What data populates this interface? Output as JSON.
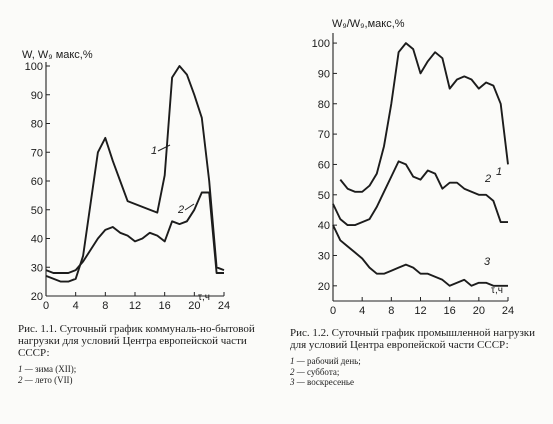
{
  "chart_data": [
    {
      "type": "line",
      "title": "",
      "ylabel": "W, W₉ макс,%",
      "xlabel": "τ,ч",
      "x_ticks": [
        0,
        4,
        8,
        12,
        16,
        20,
        24
      ],
      "y_ticks": [
        20,
        30,
        40,
        50,
        60,
        70,
        80,
        90,
        100
      ],
      "y_tick_labels": [
        "20",
        "30",
        "40",
        "50",
        "60",
        "70",
        "80",
        "90",
        "100"
      ],
      "xlim": [
        0,
        24
      ],
      "ylim": [
        20,
        100
      ],
      "grid": false,
      "series": [
        {
          "name": "1",
          "x": [
            0,
            1,
            2,
            3,
            4,
            5,
            6,
            7,
            8,
            9,
            10,
            11,
            12,
            13,
            14,
            15,
            16,
            17,
            18,
            19,
            20,
            21,
            22,
            23,
            24
          ],
          "y": [
            27,
            26,
            25,
            25,
            26,
            34,
            52,
            70,
            75,
            67,
            60,
            53,
            52,
            51,
            50,
            49,
            62,
            96,
            100,
            97,
            90,
            82,
            60,
            30,
            29
          ]
        },
        {
          "name": "2",
          "x": [
            0,
            1,
            2,
            3,
            4,
            5,
            6,
            7,
            8,
            9,
            10,
            11,
            12,
            13,
            14,
            15,
            16,
            17,
            18,
            19,
            20,
            21,
            22,
            23,
            24
          ],
          "y": [
            29,
            28,
            28,
            28,
            29,
            32,
            36,
            40,
            43,
            44,
            42,
            41,
            39,
            40,
            42,
            41,
            39,
            46,
            45,
            46,
            50,
            56,
            56,
            28,
            28
          ]
        }
      ],
      "series_labels": [
        "1",
        "2"
      ]
    },
    {
      "type": "line",
      "title": "",
      "ylabel": "W₉/W₉,макс,%",
      "xlabel": "τ,ч",
      "x_ticks": [
        0,
        4,
        8,
        12,
        16,
        20,
        24
      ],
      "y_ticks": [
        20,
        30,
        40,
        50,
        60,
        70,
        80,
        90,
        100
      ],
      "xlim": [
        0,
        24
      ],
      "ylim": [
        15,
        102
      ],
      "grid": false,
      "series": [
        {
          "name": "1",
          "x": [
            1,
            2,
            3,
            4,
            5,
            6,
            7,
            8,
            9,
            10,
            11,
            12,
            13,
            14,
            15,
            16,
            17,
            18,
            19,
            20,
            21,
            22,
            23,
            24
          ],
          "y": [
            55,
            52,
            51,
            51,
            53,
            57,
            66,
            80,
            97,
            100,
            98,
            90,
            94,
            97,
            95,
            85,
            88,
            89,
            88,
            85,
            87,
            86,
            80,
            60
          ]
        },
        {
          "name": "2",
          "x": [
            0,
            1,
            2,
            3,
            4,
            5,
            6,
            7,
            8,
            9,
            10,
            11,
            12,
            13,
            14,
            15,
            16,
            17,
            18,
            19,
            20,
            21,
            22,
            23,
            24
          ],
          "y": [
            47,
            42,
            40,
            40,
            41,
            42,
            46,
            51,
            56,
            61,
            60,
            56,
            55,
            58,
            57,
            52,
            54,
            54,
            52,
            51,
            50,
            50,
            48,
            41,
            41
          ]
        },
        {
          "name": "3",
          "x": [
            0,
            1,
            2,
            3,
            4,
            5,
            6,
            7,
            8,
            9,
            10,
            11,
            12,
            13,
            14,
            15,
            16,
            17,
            18,
            19,
            20,
            21,
            22,
            23,
            24
          ],
          "y": [
            40,
            35,
            33,
            31,
            29,
            26,
            24,
            24,
            25,
            26,
            27,
            26,
            24,
            24,
            23,
            22,
            20,
            21,
            22,
            20,
            21,
            21,
            20,
            20,
            20
          ]
        }
      ],
      "series_labels": [
        "1",
        "2",
        "3"
      ]
    }
  ],
  "captions": {
    "left": {
      "title": "Рис. 1.1. Суточный график коммуналь-но-бытовой нагрузки для условий Центра европейской части СССР:",
      "legend": [
        {
          "num": "1",
          "text": "зима (XII);"
        },
        {
          "num": "2",
          "text": "лето (VII)"
        }
      ]
    },
    "right": {
      "title": "Рис. 1.2. Суточный график промышленной нагрузки для условий Центра европейской части СССР:",
      "legend": [
        {
          "num": "1",
          "text": "рабочий день;"
        },
        {
          "num": "2",
          "text": "суббота;"
        },
        {
          "num": "3",
          "text": "воскресенье"
        }
      ]
    }
  }
}
